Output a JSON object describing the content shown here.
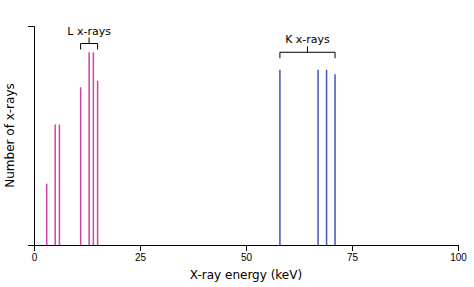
{
  "chart_data": {
    "type": "stem",
    "title": "",
    "xlabel": "X-ray energy (keV)",
    "ylabel": "Number of x-rays",
    "xlim": [
      0,
      100
    ],
    "xticks": [
      0,
      25,
      50,
      75,
      100
    ],
    "ylim": [
      0,
      1
    ],
    "yticks": [],
    "tick_labels": "x",
    "series": [
      {
        "color": "#cc44aa",
        "x": [
          3,
          5,
          6,
          11,
          13,
          14,
          15
        ],
        "values": [
          0.28,
          0.55,
          0.55,
          0.72,
          0.88,
          0.88,
          0.75
        ]
      },
      {
        "color": "#4455bb",
        "x": [
          58,
          67,
          69,
          71
        ],
        "values": [
          0.8,
          0.8,
          0.8,
          0.78
        ]
      }
    ],
    "annotations": [
      {
        "text": "L x-rays",
        "x1": 11,
        "x2": 15,
        "y": 0.92
      },
      {
        "text": "K x-rays",
        "x1": 58,
        "x2": 71,
        "y": 0.88
      }
    ]
  }
}
